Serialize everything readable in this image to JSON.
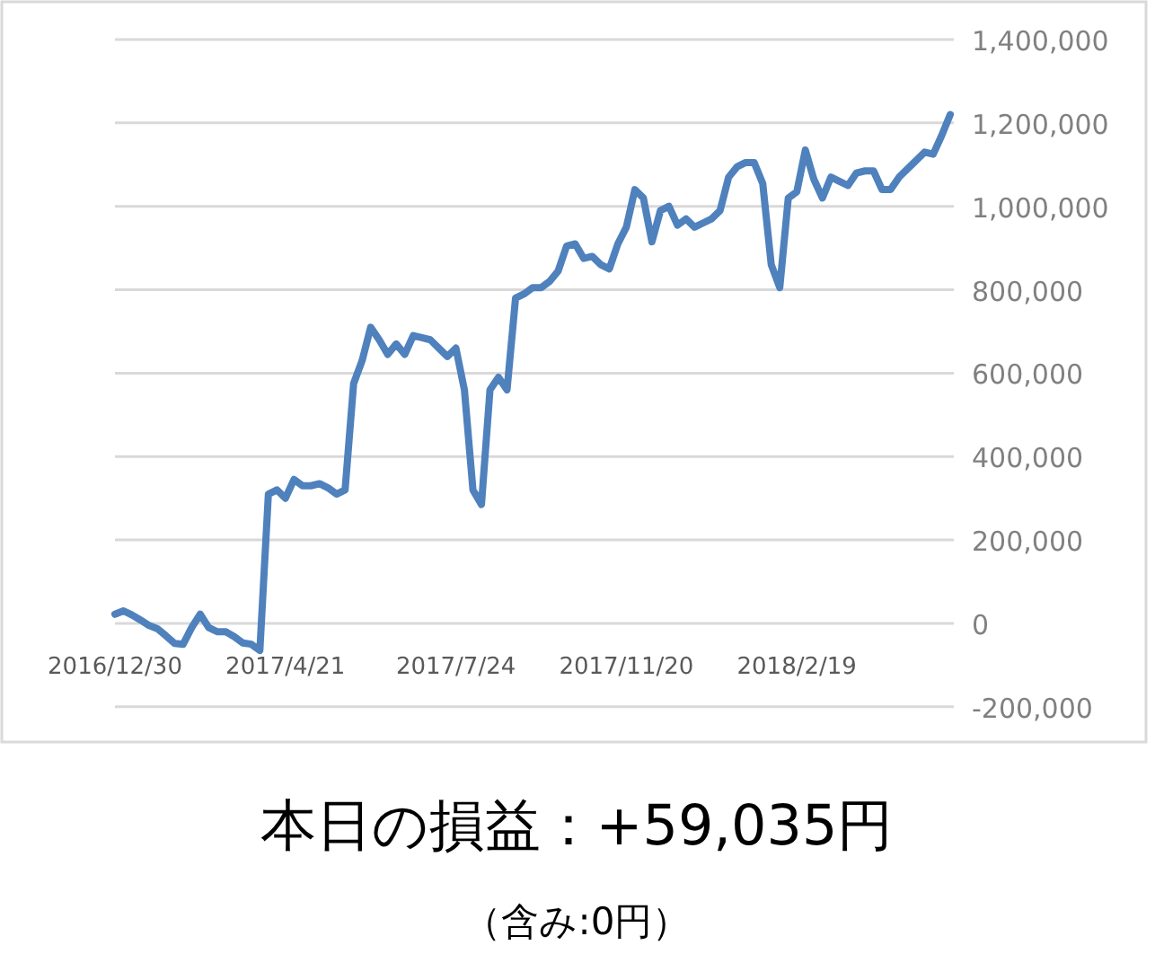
{
  "chart_data": {
    "type": "line",
    "categories": [
      "2016/12/30",
      null,
      null,
      null,
      null,
      null,
      null,
      null,
      null,
      null,
      null,
      null,
      null,
      null,
      null,
      null,
      null,
      null,
      null,
      null,
      "2017/4/21",
      null,
      null,
      null,
      null,
      null,
      null,
      null,
      null,
      null,
      null,
      null,
      null,
      null,
      null,
      null,
      null,
      null,
      null,
      null,
      "2017/7/24",
      null,
      null,
      null,
      null,
      null,
      null,
      null,
      null,
      null,
      null,
      null,
      null,
      null,
      null,
      null,
      null,
      null,
      null,
      null,
      "2017/11/20",
      null,
      null,
      null,
      null,
      null,
      null,
      null,
      null,
      null,
      null,
      null,
      null,
      null,
      null,
      null,
      null,
      null,
      null,
      null,
      "2018/2/19",
      null,
      null,
      null,
      null,
      null,
      null,
      null,
      null,
      null,
      null,
      null,
      null,
      null,
      null,
      null,
      null,
      null,
      null
    ],
    "series": [
      {
        "color": "#4f81bd",
        "values": [
          22000,
          30000,
          20000,
          8000,
          -5000,
          -13000,
          -30000,
          -48000,
          -50000,
          -10000,
          22000,
          -10000,
          -20000,
          -20000,
          -32000,
          -47000,
          -50000,
          -65000,
          310000,
          320000,
          300000,
          345000,
          330000,
          330000,
          335000,
          325000,
          310000,
          320000,
          575000,
          630000,
          710000,
          680000,
          645000,
          670000,
          645000,
          690000,
          685000,
          680000,
          660000,
          640000,
          660000,
          560000,
          320000,
          285000,
          560000,
          590000,
          560000,
          780000,
          790000,
          805000,
          805000,
          820000,
          845000,
          905000,
          910000,
          875000,
          880000,
          860000,
          850000,
          910000,
          950000,
          1040000,
          1020000,
          915000,
          990000,
          1000000,
          955000,
          970000,
          950000,
          960000,
          970000,
          990000,
          1070000,
          1095000,
          1105000,
          1105000,
          1055000,
          860000,
          805000,
          1020000,
          1035000,
          1135000,
          1065000,
          1020000,
          1070000,
          1060000,
          1050000,
          1080000,
          1085000,
          1085000,
          1040000,
          1040000,
          1070000,
          1090000,
          1110000,
          1130000,
          1125000,
          1170000,
          1220000
        ]
      }
    ],
    "ylim": [
      -200000,
      1400000
    ],
    "yticks": [
      {
        "value": -200000,
        "label": "-200,000"
      },
      0,
      {
        "value": 200000,
        "label": "200,000"
      },
      {
        "value": 400000,
        "label": "400,000"
      },
      {
        "value": 600000,
        "label": "600,000"
      },
      {
        "value": 800000,
        "label": "800,000"
      },
      {
        "value": 1000000,
        "label": "1,000,000"
      },
      {
        "value": 1200000,
        "label": "1,200,000"
      },
      {
        "value": 1400000,
        "label": "1,400,000"
      }
    ],
    "grid": "y",
    "annotations": [
      "本日の損益：+59,035円",
      "（含み:0円）"
    ]
  }
}
